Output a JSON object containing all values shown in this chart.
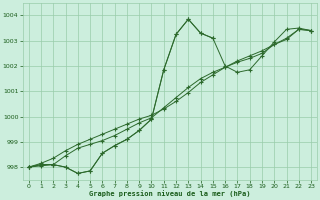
{
  "x": [
    0,
    1,
    2,
    3,
    4,
    5,
    6,
    7,
    8,
    9,
    10,
    11,
    12,
    13,
    14,
    15,
    16,
    17,
    18,
    19,
    20,
    21,
    22,
    23
  ],
  "series_peak": [
    998.0,
    998.1,
    998.1,
    998.0,
    997.75,
    997.85,
    998.55,
    998.85,
    999.1,
    999.45,
    999.9,
    1001.85,
    1003.25,
    1003.85,
    1003.3,
    1003.1,
    null,
    null,
    null,
    null,
    null,
    null,
    null,
    null
  ],
  "series_zigzag": [
    998.0,
    998.1,
    998.1,
    998.0,
    997.75,
    997.85,
    998.55,
    998.85,
    999.1,
    999.45,
    999.9,
    1001.85,
    1003.25,
    1003.85,
    1003.3,
    1003.1,
    1002.0,
    1001.75,
    1001.85,
    1002.4,
    1002.95,
    1003.45,
    1003.5,
    1003.4
  ],
  "series_mid": [
    998.0,
    998.05,
    998.1,
    998.45,
    998.75,
    998.9,
    999.05,
    999.25,
    999.5,
    999.75,
    999.95,
    1000.35,
    1000.75,
    1001.15,
    1001.5,
    1001.75,
    1001.95,
    1002.15,
    1002.3,
    1002.5,
    1002.85,
    1003.05,
    1003.45,
    1003.4
  ],
  "series_lin": [
    998.0,
    998.15,
    998.35,
    998.65,
    998.9,
    999.1,
    999.3,
    999.5,
    999.7,
    999.9,
    1000.05,
    1000.3,
    1000.6,
    1000.95,
    1001.35,
    1001.65,
    1001.95,
    1002.2,
    1002.4,
    1002.6,
    1002.85,
    1003.1,
    1003.45,
    1003.4
  ],
  "line_color": "#2d6a2d",
  "bg_color": "#cceedd",
  "grid_color": "#99ccaa",
  "text_color": "#1a5c1a",
  "xlabel": "Graphe pression niveau de la mer (hPa)",
  "ylim": [
    997.5,
    1004.5
  ],
  "xlim": [
    -0.5,
    23.5
  ],
  "yticks": [
    998,
    999,
    1000,
    1001,
    1002,
    1003,
    1004
  ],
  "xticks": [
    0,
    1,
    2,
    3,
    4,
    5,
    6,
    7,
    8,
    9,
    10,
    11,
    12,
    13,
    14,
    15,
    16,
    17,
    18,
    19,
    20,
    21,
    22,
    23
  ]
}
